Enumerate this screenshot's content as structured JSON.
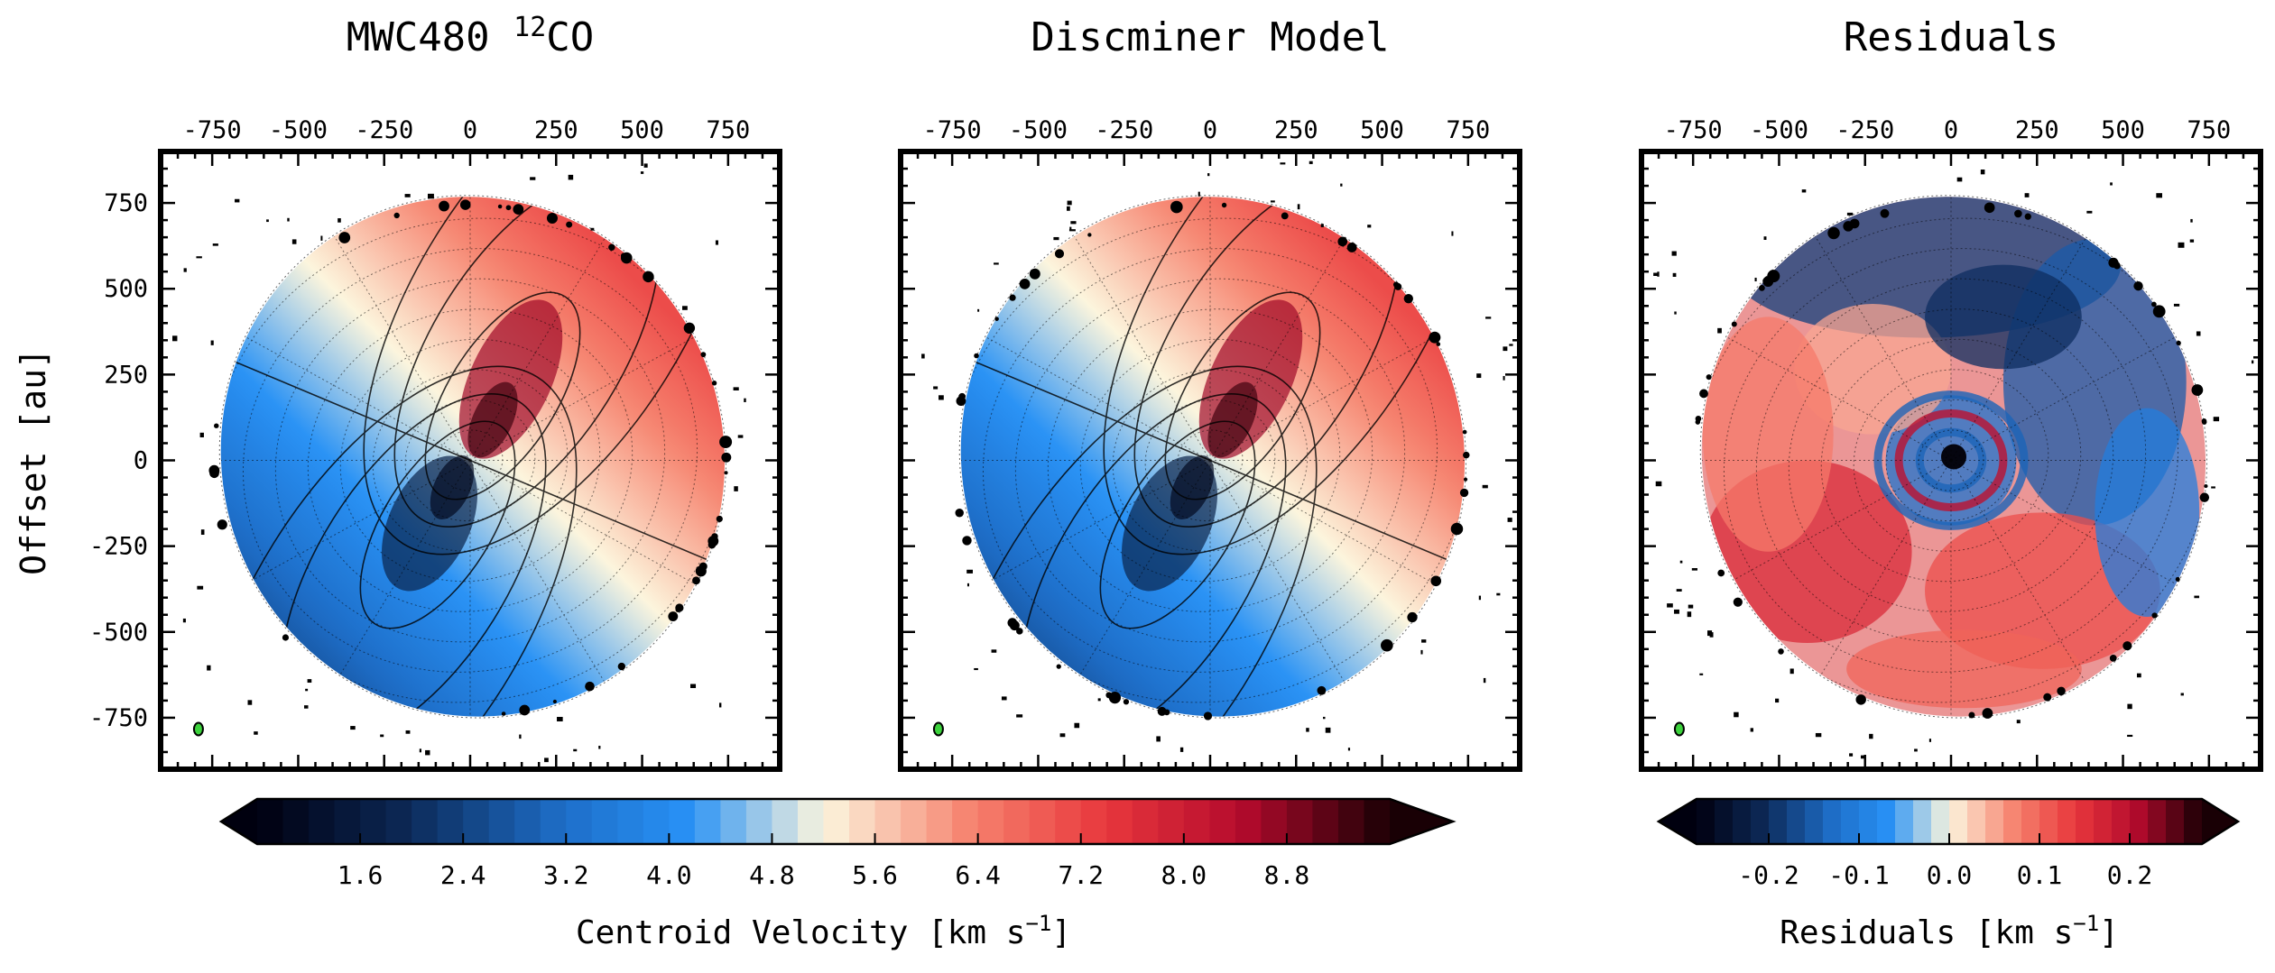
{
  "figure": {
    "panels": [
      {
        "key": "data",
        "title_main": "MWC480 ",
        "title_sup": "12",
        "title_tail": "CO",
        "map": "velocity"
      },
      {
        "key": "model",
        "title_main": "Discminer Model",
        "title_sup": "",
        "title_tail": "",
        "map": "velocity"
      },
      {
        "key": "resid",
        "title_main": "Residuals",
        "title_sup": "",
        "title_tail": "",
        "map": "residual"
      }
    ],
    "ylabel": "Offset [au]",
    "xticks": [
      -750,
      -500,
      -250,
      0,
      250,
      500,
      750
    ],
    "yticks": [
      750,
      500,
      250,
      0,
      -250,
      -500,
      -750
    ],
    "colorbars": [
      {
        "key": "velocity",
        "label_main": "Centroid Velocity [km s",
        "label_sup": "−1",
        "label_tail": "]",
        "range": [
          0.8,
          9.6
        ],
        "ticks": [
          "1.6",
          "2.4",
          "3.2",
          "4.0",
          "4.8",
          "5.6",
          "6.4",
          "7.2",
          "8.0",
          "8.8"
        ],
        "tick_values": [
          1.6,
          2.4,
          3.2,
          4.0,
          4.8,
          5.6,
          6.4,
          7.2,
          8.0,
          8.8
        ]
      },
      {
        "key": "residual",
        "label_main": "Residuals [km s",
        "label_sup": "−1",
        "label_tail": "]",
        "range": [
          -0.28,
          0.28
        ],
        "ticks": [
          "-0.2",
          "-0.1",
          "0.0",
          "0.1",
          "0.2"
        ],
        "tick_values": [
          -0.2,
          -0.1,
          0.0,
          0.1,
          0.2
        ]
      }
    ]
  },
  "chart_data": [
    {
      "type": "heatmap",
      "title": "MWC480 12CO",
      "ylabel": "Offset [au]",
      "xlim": [
        -900,
        900
      ],
      "ylim": [
        -900,
        900
      ],
      "quantity": "Centroid Velocity [km s-1]",
      "systemic_velocity": 5.0,
      "range": [
        0.8,
        9.6
      ],
      "colormap": "diverging blue-white-red",
      "contours": true,
      "polar_grid": true,
      "beam_color": "#3cd23c"
    },
    {
      "type": "heatmap",
      "title": "Discminer Model",
      "xlim": [
        -900,
        900
      ],
      "ylim": [
        -900,
        900
      ],
      "quantity": "Centroid Velocity [km s-1]",
      "systemic_velocity": 5.0,
      "range": [
        0.8,
        9.6
      ],
      "colormap": "diverging blue-white-red",
      "contours": true,
      "polar_grid": true,
      "beam_color": "#3cd23c"
    },
    {
      "type": "heatmap",
      "title": "Residuals",
      "xlim": [
        -900,
        900
      ],
      "ylim": [
        -900,
        900
      ],
      "quantity": "Residuals [km s-1]",
      "range": [
        -0.28,
        0.28
      ],
      "colormap": "diverging blue-white-red",
      "contours": false,
      "polar_grid": true,
      "beam_color": "#3cd23c"
    }
  ]
}
